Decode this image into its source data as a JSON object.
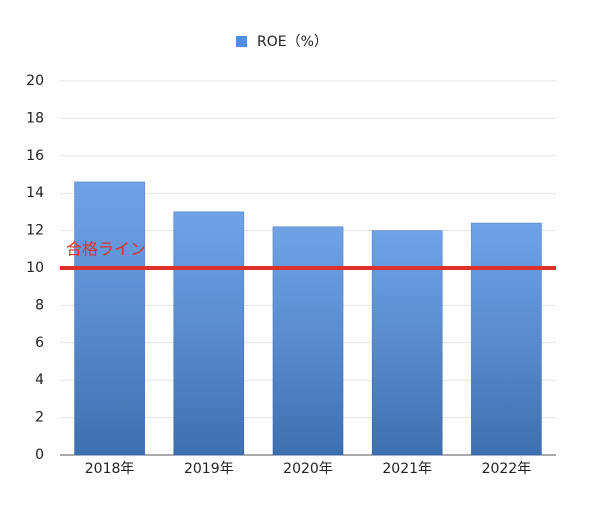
{
  "chart_data": {
    "type": "bar",
    "legend": "ROE（%）",
    "categories": [
      "2018年",
      "2019年",
      "2020年",
      "2021年",
      "2022年"
    ],
    "values": [
      14.6,
      13.0,
      12.2,
      12.0,
      12.4
    ],
    "color": "#4f8ee0",
    "ylim": [
      0,
      20
    ],
    "yticks": [
      0,
      2,
      4,
      6,
      8,
      10,
      12,
      14,
      16,
      18,
      20
    ],
    "grid": true,
    "reference_line": {
      "value": 10,
      "label": "合格ライン",
      "color": "#e0302a"
    }
  }
}
